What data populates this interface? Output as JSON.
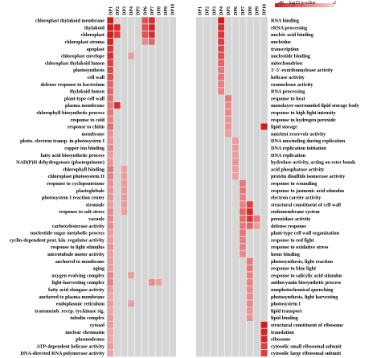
{
  "chart_data": [
    {
      "type": "heatmap",
      "columns": [
        "DP1",
        "DP2",
        "DP3",
        "DP4",
        "DP5",
        "DP6",
        "DP7",
        "DP8",
        "DP9",
        "DP10"
      ],
      "rows": [
        "chloroplast thylakoid membrane",
        "thylakoid",
        "chloroplast",
        "chloroplast stroma",
        "apoplast",
        "chloroplast envelope",
        "chloroplast thylakoid lumen",
        "photosynthesis",
        "cell wall",
        "defense response to bacterium",
        "thylakoid lumen",
        "plant-type cell wall",
        "plasma membrane",
        "chlorophyll biosynthetic process",
        "response to cold",
        "response to chitin",
        "membrane",
        "photo. electron transp. in photosystem I",
        "copper ion binding",
        "fatty acid biosynthetic process",
        "NAD(P)H dehydrogenase (plastoquinone)",
        "chlorophyll binding",
        "chloroplast photosystem II",
        "response to cyclopentenone",
        "plastoglobule",
        "photosystem I reaction center",
        "stromule",
        "response to salt stress",
        "vacuole",
        "carboxylesterase activity",
        "nucleotide-sugar metabolic process",
        "cyclin-dependent prot. kin. regulator activity",
        "response to light stimulus",
        "microtubule motor activity",
        "anchored to membrane",
        "aging",
        "oxygen evolving complex",
        "light-harvesting complex",
        "fatty acid elongase activity",
        "anchored to plasma membrane",
        "endoplasmic reticulum",
        "transmemb. recep. tyr.kinase sig.",
        "tubulin complex",
        "cytosol",
        "nuclear chromatin",
        "plasmodesma",
        "ATP-dependent helicase activity",
        "DNA-directed RNA polymerase activity"
      ],
      "cells": [
        [
          0,
          1.0
        ],
        [
          1,
          1.0
        ],
        [
          2,
          1.0
        ],
        [
          3,
          0.95
        ],
        [
          4,
          0.85
        ],
        [
          5,
          0.9
        ],
        [
          6,
          0.8
        ],
        [
          7,
          0.75
        ],
        [
          8,
          0.7
        ],
        [
          9,
          0.6
        ],
        [
          10,
          0.6
        ],
        [
          11,
          0.55
        ],
        [
          12,
          0.5
        ],
        [
          13,
          0.5
        ],
        [
          14,
          0.45
        ],
        [
          15,
          0.55
        ],
        [
          16,
          0.35
        ],
        [
          17,
          0.35
        ],
        [
          18,
          0.4
        ],
        [
          19,
          0.3
        ],
        [
          20,
          0.35
        ],
        [
          21,
          0.5
        ],
        [
          22,
          0.45
        ],
        [
          23,
          0.35
        ],
        [
          24,
          0.35
        ],
        [
          25,
          0.35
        ],
        [
          26,
          0.3
        ],
        [
          27,
          0.4
        ],
        [
          28,
          0.4
        ],
        [
          29,
          0.4
        ],
        [
          30,
          0.3
        ],
        [
          31,
          0.3
        ],
        [
          32,
          0.35
        ],
        [
          33,
          0.3
        ],
        [
          34,
          0.3
        ],
        [
          35,
          0.3
        ],
        [
          36,
          0.4
        ],
        [
          37,
          0.45
        ],
        [
          38,
          0.3
        ],
        [
          39,
          0.25
        ],
        [
          40,
          0.3
        ],
        [
          41,
          0.25
        ],
        [
          42,
          0.3
        ],
        [
          43,
          0.3
        ],
        [
          44,
          0.25
        ],
        [
          45,
          0.25
        ],
        [
          46,
          0.3
        ],
        [
          47,
          0.25
        ]
      ],
      "extra_cells": {
        "DP2": [
          [
            1,
            0.9
          ],
          [
            2,
            0.8
          ],
          [
            12,
            0.9
          ]
        ],
        "DP3": [
          [
            21,
            0.3
          ],
          [
            22,
            0.3
          ],
          [
            23,
            0.3
          ],
          [
            24,
            0.3
          ],
          [
            25,
            0.3
          ],
          [
            26,
            0.3
          ],
          [
            27,
            0.3
          ]
        ],
        "DP4": [
          [
            5,
            0.3
          ],
          [
            36,
            0.3
          ],
          [
            40,
            0.3
          ]
        ],
        "DP6": [
          [
            0,
            0.7
          ],
          [
            1,
            0.7
          ],
          [
            2,
            0.7
          ],
          [
            3,
            0.4
          ]
        ],
        "DP7": [
          [
            0,
            0.9
          ],
          [
            1,
            0.95
          ],
          [
            2,
            0.9
          ],
          [
            3,
            0.6
          ],
          [
            37,
            0.4
          ]
        ],
        "DP8": [
          [
            37,
            0.3
          ]
        ]
      }
    },
    {
      "type": "heatmap",
      "columns": [
        "DP1",
        "DP2",
        "DP3",
        "DP4",
        "DP5",
        "DP6",
        "DP7",
        "DP8",
        "DP9",
        "DP10"
      ],
      "rows": [
        "RNA binding",
        "rRNA processing",
        "nucleic acid binding",
        "nucleolus",
        "transcription",
        "nucleotide binding",
        "mitochondrion",
        "3'-5'-exoribonuclease activity",
        "helicase activity",
        "exonuclease activity",
        "RNA processing",
        "response to heat",
        "monolayer-surrounded lipid storage body",
        "response to high light intensity",
        "response to hydrogen peroxide",
        "lipid storage",
        "nutrient reservoir activity",
        "DNA unwinding during replication",
        "DNA replication initiation",
        "DNA replication",
        "hydrolase activity, acting on ester bonds",
        "acid phosphatase activity",
        "protein disulfide isomerase activity",
        "response to wounding",
        "response to jasmonic acid stimulus",
        "electron carrier activity",
        "structural constituent of cell wall",
        "endomembrane system",
        "peroxidase activity",
        "defense response",
        "plant-type cell wall organization",
        "response to red light",
        "response to oxidative stress",
        "heme binding",
        "photosynthesis, light reaction",
        "response to blue light",
        "response to salicylic acid stimulus",
        "anthocyanin biosynthetic process",
        "nonphotochemical quenching",
        "photosynthesis, light harvesting",
        "photosystem I",
        "lipid transport",
        "lipid binding",
        "structural constituent of ribosome",
        "translation",
        "ribosome",
        "cytosolic small ribosomal subunit",
        "cytosolic large ribosomal subunit"
      ],
      "cells_dp4": [
        [
          0,
          1.0
        ],
        [
          1,
          0.9
        ],
        [
          2,
          0.85
        ],
        [
          3,
          0.8
        ],
        [
          4,
          0.75
        ],
        [
          5,
          0.7
        ],
        [
          6,
          0.6
        ],
        [
          7,
          0.5
        ],
        [
          8,
          0.5
        ],
        [
          9,
          0.45
        ],
        [
          10,
          0.45
        ]
      ],
      "cells_dp5": [
        [
          11,
          0.5
        ],
        [
          12,
          0.4
        ],
        [
          13,
          0.4
        ],
        [
          14,
          0.35
        ],
        [
          15,
          0.35
        ],
        [
          16,
          0.3
        ]
      ],
      "cells_dp6": [
        [
          17,
          0.3
        ],
        [
          18,
          0.3
        ],
        [
          19,
          0.3
        ],
        [
          20,
          0.35
        ],
        [
          21,
          0.3
        ],
        [
          22,
          0.3
        ]
      ],
      "cells_dp7": [
        [
          23,
          0.5
        ],
        [
          24,
          0.5
        ],
        [
          25,
          0.45
        ],
        [
          26,
          0.45
        ],
        [
          27,
          0.6
        ],
        [
          28,
          0.55
        ],
        [
          29,
          0.5
        ],
        [
          30,
          0.5
        ],
        [
          31,
          0.45
        ],
        [
          32,
          0.45
        ],
        [
          33,
          0.4
        ]
      ],
      "cells_dp8": [
        [
          26,
          0.8
        ],
        [
          27,
          0.95
        ],
        [
          28,
          0.85
        ],
        [
          29,
          0.6
        ],
        [
          34,
          0.5
        ],
        [
          35,
          0.5
        ],
        [
          36,
          0.45
        ],
        [
          37,
          0.45
        ],
        [
          38,
          0.4
        ],
        [
          39,
          0.4
        ],
        [
          40,
          0.4
        ],
        [
          41,
          0.35
        ],
        [
          42,
          0.35
        ]
      ],
      "cells_dp9": [
        [
          28,
          0.5
        ],
        [
          29,
          0.3
        ]
      ],
      "cells_dp10": [
        [
          15,
          1.0
        ],
        [
          43,
          1.0
        ],
        [
          44,
          0.95
        ],
        [
          45,
          0.95
        ],
        [
          46,
          0.8
        ],
        [
          47,
          0.8
        ]
      ]
    }
  ],
  "legend": {
    "min_label": "-48",
    "title": "log10 p-value",
    "max_label": "-2"
  },
  "colors": {
    "bg": "#d6d6d6",
    "high": "#d7191c",
    "low": "#f7d4d4",
    "grid": "#ffffff"
  }
}
